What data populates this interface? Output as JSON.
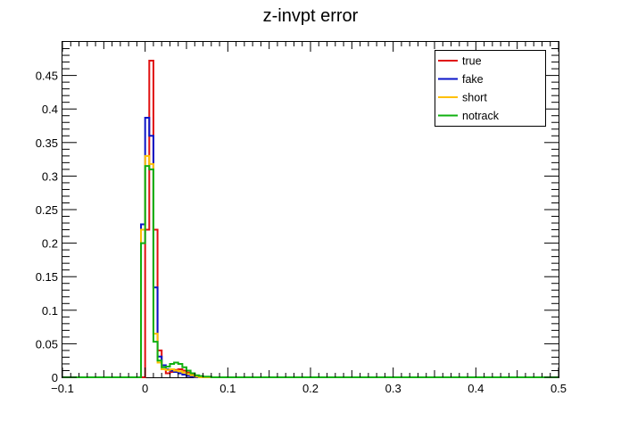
{
  "chart_data": {
    "type": "line",
    "title": "z-invpt error",
    "xlabel": "",
    "ylabel": "",
    "xlim": [
      -0.1,
      0.5
    ],
    "ylim": [
      0,
      0.5
    ],
    "x_ticks": [
      -0.1,
      0,
      0.1,
      0.2,
      0.3,
      0.4,
      0.5
    ],
    "x_tick_labels": [
      "−0.1",
      "0",
      "0.1",
      "0.2",
      "0.3",
      "0.4",
      "0.5"
    ],
    "y_ticks": [
      0,
      0.05,
      0.1,
      0.15,
      0.2,
      0.25,
      0.3,
      0.35,
      0.4,
      0.45
    ],
    "y_tick_labels": [
      "0",
      "0.05",
      "0.1",
      "0.15",
      "0.2",
      "0.25",
      "0.3",
      "0.35",
      "0.4",
      "0.45"
    ],
    "legend_position": "top-right",
    "grid": false,
    "bin_edges": [
      -0.005,
      0.0,
      0.005,
      0.01,
      0.015,
      0.02,
      0.025,
      0.03,
      0.035,
      0.04,
      0.045,
      0.05,
      0.055,
      0.06,
      0.065,
      0.07,
      0.075,
      0.08,
      0.085,
      0.09,
      0.095
    ],
    "series": [
      {
        "name": "true",
        "color": "#e01010",
        "values": [
          0.0,
          0.22,
          0.472,
          0.22,
          0.04,
          0.012,
          0.006,
          0.008,
          0.011,
          0.012,
          0.01,
          0.007,
          0.005,
          0.002,
          0.001,
          0.0,
          0.0,
          0.0,
          0.0,
          0.0
        ]
      },
      {
        "name": "fake",
        "color": "#0a14c8",
        "values": [
          0.228,
          0.387,
          0.36,
          0.134,
          0.031,
          0.018,
          0.012,
          0.01,
          0.008,
          0.006,
          0.004,
          0.002,
          0.001,
          0.0,
          0.0,
          0.0,
          0.0,
          0.0,
          0.0,
          0.0
        ]
      },
      {
        "name": "short",
        "color": "#ffc000",
        "values": [
          0.22,
          0.33,
          0.318,
          0.065,
          0.022,
          0.012,
          0.011,
          0.012,
          0.01,
          0.009,
          0.007,
          0.005,
          0.003,
          0.001,
          0.0,
          0.0,
          0.0,
          0.0,
          0.0,
          0.0
        ]
      },
      {
        "name": "notrack",
        "color": "#10b010",
        "values": [
          0.2,
          0.315,
          0.31,
          0.053,
          0.025,
          0.015,
          0.016,
          0.02,
          0.022,
          0.02,
          0.015,
          0.01,
          0.006,
          0.003,
          0.002,
          0.001,
          0.001,
          0.0,
          0.0,
          0.0
        ]
      }
    ]
  }
}
